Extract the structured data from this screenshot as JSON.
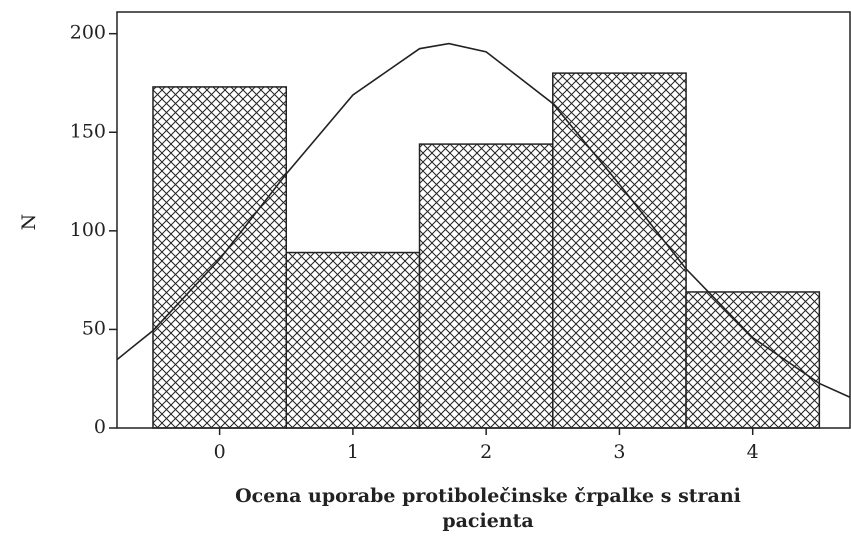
{
  "chart_data": {
    "type": "histogram",
    "xlabel": "Ocena uporabe protibolečinske črpalke s strani pacienta",
    "ylabel": "N",
    "bins": [
      -0.5,
      0.5,
      1.5,
      2.5,
      3.5,
      4.5
    ],
    "counts": [
      173,
      89,
      144,
      180,
      69
    ],
    "color": "#ffffff",
    "hatch": "crosshatch",
    "xlim": [
      -0.77,
      4.73
    ],
    "xticks": [
      0,
      1,
      2,
      3,
      4
    ],
    "ylim": [
      0,
      211
    ],
    "yticks": [
      0,
      50,
      100,
      150,
      200
    ],
    "curve": {
      "type": "normal",
      "x": [
        -0.77,
        -0.5,
        0,
        0.5,
        1,
        1.5,
        1.72,
        2,
        2.5,
        3,
        3.5,
        4,
        4.5,
        4.73
      ],
      "values": [
        34.7,
        49.4,
        85.6,
        128.9,
        168.9,
        192.4,
        195,
        190.8,
        164.6,
        123.6,
        80.7,
        45.8,
        22.6,
        15.6
      ]
    }
  }
}
